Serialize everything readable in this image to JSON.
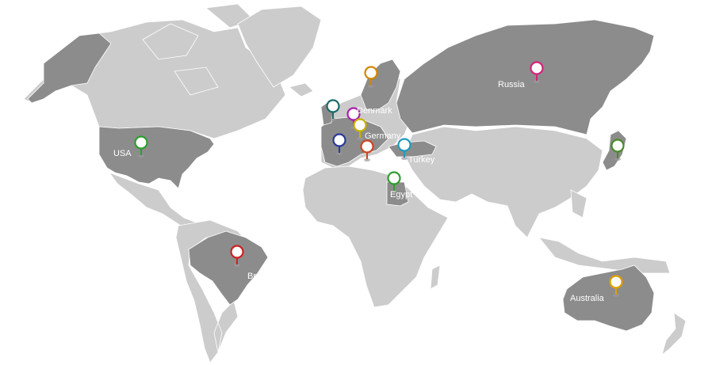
{
  "map": {
    "land_color": "#cccccc",
    "highlight_color": "#8c8c8c",
    "markers": [
      {
        "id": "usa",
        "label": "USA",
        "color": "#2e9e2e",
        "icon": "map-pin-icon"
      },
      {
        "id": "brazil",
        "label": "Bra",
        "color": "#cc2222",
        "icon": "map-pin-icon"
      },
      {
        "id": "russia",
        "label": "Russia",
        "color": "#d4237a",
        "icon": "map-pin-icon"
      },
      {
        "id": "denmark",
        "label": "Denmark",
        "color": "#aa22aa",
        "icon": "map-pin-icon"
      },
      {
        "id": "germany",
        "label": "Germany",
        "color": "#c8b400",
        "icon": "map-pin-icon"
      },
      {
        "id": "turkey",
        "label": "Turkey",
        "color": "#2299bb",
        "icon": "map-pin-icon"
      },
      {
        "id": "egypt",
        "label": "Egypt",
        "color": "#2e9e2e",
        "icon": "map-pin-icon"
      },
      {
        "id": "australia",
        "label": "Australia",
        "color": "#e0a000",
        "icon": "map-pin-icon"
      },
      {
        "id": "sweden",
        "label": "",
        "color": "#d08800",
        "icon": "map-pin-icon"
      },
      {
        "id": "uk",
        "label": "",
        "color": "#1a6b6b",
        "icon": "map-pin-icon"
      },
      {
        "id": "france",
        "label": "",
        "color": "#2a3a99",
        "icon": "map-pin-icon"
      },
      {
        "id": "italy",
        "label": "",
        "color": "#cc4422",
        "icon": "map-pin-icon"
      },
      {
        "id": "japan",
        "label": "",
        "color": "#4a8a2a",
        "icon": "map-pin-icon"
      }
    ]
  }
}
